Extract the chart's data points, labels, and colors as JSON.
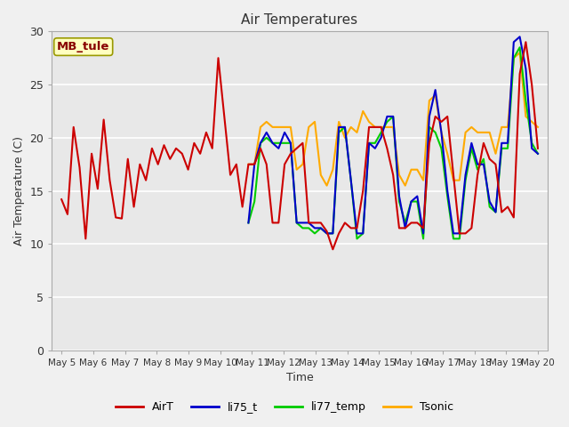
{
  "title": "Air Temperatures",
  "xlabel": "Time",
  "ylabel": "Air Temperature (C)",
  "ylim": [
    0,
    30
  ],
  "yticks": [
    0,
    5,
    10,
    15,
    20,
    25,
    30
  ],
  "annotation": "MB_tule",
  "fig_bg_color": "#f0f0f0",
  "plot_bg_color": "#e8e8e8",
  "legend": [
    "AirT",
    "li75_t",
    "li77_temp",
    "Tsonic"
  ],
  "colors": [
    "#cc0000",
    "#0000cc",
    "#00cc00",
    "#ffaa00"
  ],
  "xtick_labels": [
    "May 5",
    "May 6",
    "May 7",
    "May 8",
    "May 9",
    "May 10",
    "May 11",
    "May 12",
    "May 13",
    "May 14",
    "May 15",
    "May 16",
    "May 17",
    "May 18",
    "May 19",
    "May 20"
  ],
  "AirT": [
    14.2,
    12.8,
    21.0,
    17.2,
    10.5,
    18.5,
    15.2,
    21.7,
    16.0,
    12.5,
    12.4,
    18.0,
    13.5,
    17.5,
    16.0,
    19.0,
    17.5,
    19.3,
    18.0,
    19.0,
    18.5,
    17.0,
    19.5,
    18.5,
    20.5,
    19.0,
    27.5,
    22.0,
    16.5,
    17.5,
    13.5,
    17.5,
    17.5,
    19.0,
    17.5,
    12.0,
    12.0,
    17.5,
    18.5,
    19.0,
    19.5,
    12.0,
    12.0,
    12.0,
    11.2,
    9.5,
    11.0,
    12.0,
    11.5,
    11.5,
    15.0,
    21.0,
    21.0,
    21.0,
    19.0,
    16.5,
    11.5,
    11.5,
    12.0,
    12.0,
    11.5,
    19.5,
    22.0,
    21.5,
    22.0,
    16.5,
    11.0,
    11.0,
    11.5,
    16.5,
    19.5,
    18.0,
    17.5,
    13.0,
    13.5,
    12.5,
    26.0,
    29.0,
    25.0,
    19.0
  ],
  "li75_t": [
    null,
    null,
    null,
    null,
    null,
    null,
    null,
    null,
    null,
    null,
    null,
    null,
    null,
    null,
    null,
    null,
    null,
    null,
    null,
    null,
    null,
    null,
    null,
    null,
    null,
    null,
    null,
    null,
    null,
    null,
    null,
    12.0,
    17.5,
    19.5,
    20.5,
    19.5,
    19.0,
    20.5,
    19.5,
    12.0,
    12.0,
    12.0,
    11.5,
    11.5,
    11.0,
    11.0,
    21.0,
    21.0,
    16.0,
    11.0,
    11.0,
    19.5,
    19.0,
    20.0,
    22.0,
    22.0,
    14.5,
    11.5,
    14.0,
    14.5,
    11.0,
    22.0,
    24.5,
    20.5,
    15.0,
    11.0,
    11.0,
    16.5,
    19.5,
    17.5,
    17.5,
    14.0,
    13.0,
    19.5,
    19.5,
    29.0,
    29.5,
    26.5,
    19.0,
    18.5
  ],
  "li77_temp": [
    null,
    null,
    null,
    null,
    null,
    null,
    null,
    null,
    null,
    null,
    null,
    null,
    null,
    null,
    null,
    null,
    null,
    null,
    null,
    null,
    null,
    null,
    null,
    null,
    null,
    null,
    null,
    null,
    null,
    null,
    null,
    12.0,
    14.0,
    19.5,
    20.0,
    19.5,
    19.5,
    19.5,
    19.5,
    12.0,
    11.5,
    11.5,
    11.0,
    11.5,
    11.0,
    11.0,
    20.5,
    21.0,
    16.0,
    10.5,
    11.0,
    19.5,
    19.5,
    20.5,
    21.5,
    22.0,
    14.0,
    12.0,
    14.0,
    14.0,
    10.5,
    21.0,
    20.5,
    19.0,
    14.5,
    10.5,
    10.5,
    16.0,
    19.0,
    17.0,
    18.0,
    13.5,
    13.0,
    19.0,
    19.0,
    27.5,
    28.5,
    23.5,
    19.5,
    18.5
  ],
  "Tsonic": [
    null,
    null,
    null,
    null,
    null,
    null,
    null,
    null,
    null,
    null,
    null,
    null,
    null,
    null,
    null,
    null,
    null,
    null,
    null,
    null,
    null,
    null,
    null,
    null,
    null,
    null,
    null,
    null,
    null,
    null,
    null,
    17.5,
    17.5,
    21.0,
    21.5,
    21.0,
    21.0,
    21.0,
    21.0,
    17.0,
    17.5,
    21.0,
    21.5,
    16.5,
    15.5,
    17.0,
    21.5,
    20.0,
    21.0,
    20.5,
    22.5,
    21.5,
    21.0,
    21.0,
    21.0,
    21.0,
    16.5,
    15.5,
    17.0,
    17.0,
    16.0,
    23.5,
    24.0,
    20.5,
    18.5,
    16.0,
    16.0,
    20.5,
    21.0,
    20.5,
    20.5,
    20.5,
    18.5,
    21.0,
    21.0,
    27.5,
    28.0,
    22.0,
    21.5,
    21.0
  ]
}
